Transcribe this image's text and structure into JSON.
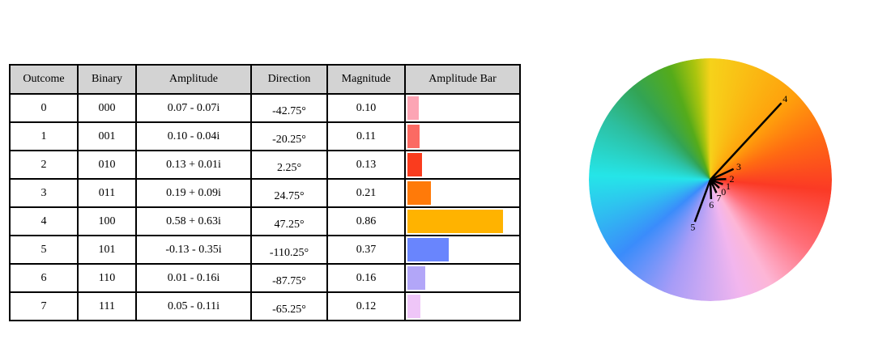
{
  "table": {
    "headers": [
      "Outcome",
      "Binary",
      "Amplitude",
      "Direction",
      "Magnitude",
      "Amplitude Bar"
    ],
    "rows": [
      {
        "outcome": "0",
        "binary": "000",
        "amplitude": "0.07 - 0.07i",
        "direction": "-42.75°",
        "magnitude": "0.10",
        "color": "#fca5b4"
      },
      {
        "outcome": "1",
        "binary": "001",
        "amplitude": "0.10 - 0.04i",
        "direction": "-20.25°",
        "magnitude": "0.11",
        "color": "#fb6a63"
      },
      {
        "outcome": "2",
        "binary": "010",
        "amplitude": "0.13 + 0.01i",
        "direction": "2.25°",
        "magnitude": "0.13",
        "color": "#fa3c1e"
      },
      {
        "outcome": "3",
        "binary": "011",
        "amplitude": "0.19 + 0.09i",
        "direction": "24.75°",
        "magnitude": "0.21",
        "color": "#ff7a09"
      },
      {
        "outcome": "4",
        "binary": "100",
        "amplitude": "0.58 + 0.63i",
        "direction": "47.25°",
        "magnitude": "0.86",
        "color": "#ffb300"
      },
      {
        "outcome": "5",
        "binary": "101",
        "amplitude": "-0.13 - 0.35i",
        "direction": "-110.25°",
        "magnitude": "0.37",
        "color": "#6985fd"
      },
      {
        "outcome": "6",
        "binary": "110",
        "amplitude": "0.01 - 0.16i",
        "direction": "-87.75°",
        "magnitude": "0.16",
        "color": "#b2a6f8"
      },
      {
        "outcome": "7",
        "binary": "111",
        "amplitude": "0.05 - 0.11i",
        "direction": "-65.25°",
        "magnitude": "0.12",
        "color": "#efc6f8"
      }
    ]
  },
  "chart_data": {
    "type": "table",
    "title": "",
    "columns": [
      "Outcome",
      "Binary",
      "Amplitude",
      "Direction",
      "Magnitude",
      "Amplitude Bar"
    ],
    "bar_values": [
      0.1,
      0.11,
      0.13,
      0.21,
      0.86,
      0.37,
      0.16,
      0.12
    ],
    "wheel": {
      "type": "polar-vectors",
      "labels": [
        "0",
        "1",
        "2",
        "3",
        "4",
        "5",
        "6",
        "7"
      ],
      "magnitudes": [
        0.1,
        0.11,
        0.13,
        0.21,
        0.86,
        0.37,
        0.16,
        0.12
      ],
      "angles_deg": [
        -42.75,
        -20.25,
        2.25,
        24.75,
        47.25,
        -110.25,
        -87.75,
        -65.25
      ],
      "max_magnitude": 1.0
    }
  }
}
